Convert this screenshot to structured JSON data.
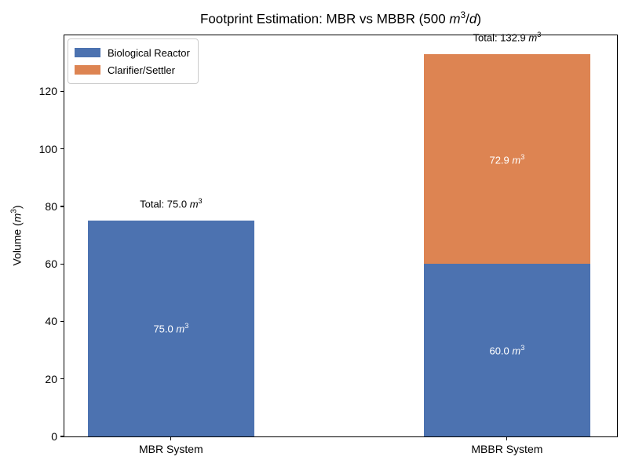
{
  "figure_title": {
    "prefix": "Footprint Estimation: MBR vs MBBR (500 ",
    "m": "m",
    "exp": "3",
    "slash": "/",
    "d": "d",
    "close": ")"
  },
  "y_axis": {
    "label_prefix": "Volume (",
    "m": "m",
    "exp": "3",
    "close": ")"
  },
  "chart_data": {
    "type": "bar",
    "stacked": true,
    "title": "Footprint Estimation: MBR vs MBBR (500 m^3/d)",
    "xlabel": "",
    "ylabel": "Volume (m^3)",
    "categories": [
      "MBR System",
      "MBBR System"
    ],
    "series": [
      {
        "name": "Biological Reactor",
        "color": "#4C72B0",
        "values": [
          75.0,
          60.0
        ]
      },
      {
        "name": "Clarifier/Settler",
        "color": "#DD8452",
        "values": [
          0.0,
          72.9
        ]
      }
    ],
    "totals": [
      75.0,
      132.9
    ],
    "total_labels": [
      "Total: 75.0",
      "Total: 132.9"
    ],
    "segment_labels": [
      [
        "75.0",
        "60.0"
      ],
      [
        null,
        "72.9"
      ]
    ],
    "unit": "m^3",
    "ylim": [
      0,
      139.5
    ],
    "yticks": [
      0,
      20,
      40,
      60,
      80,
      100,
      120
    ],
    "grid": false,
    "legend": {
      "position": "upper left",
      "entries": [
        "Biological Reactor",
        "Clarifier/Settler"
      ]
    },
    "layout": {
      "bar_centers_frac": [
        0.193,
        0.801
      ],
      "bar_width_frac": 0.302
    }
  }
}
